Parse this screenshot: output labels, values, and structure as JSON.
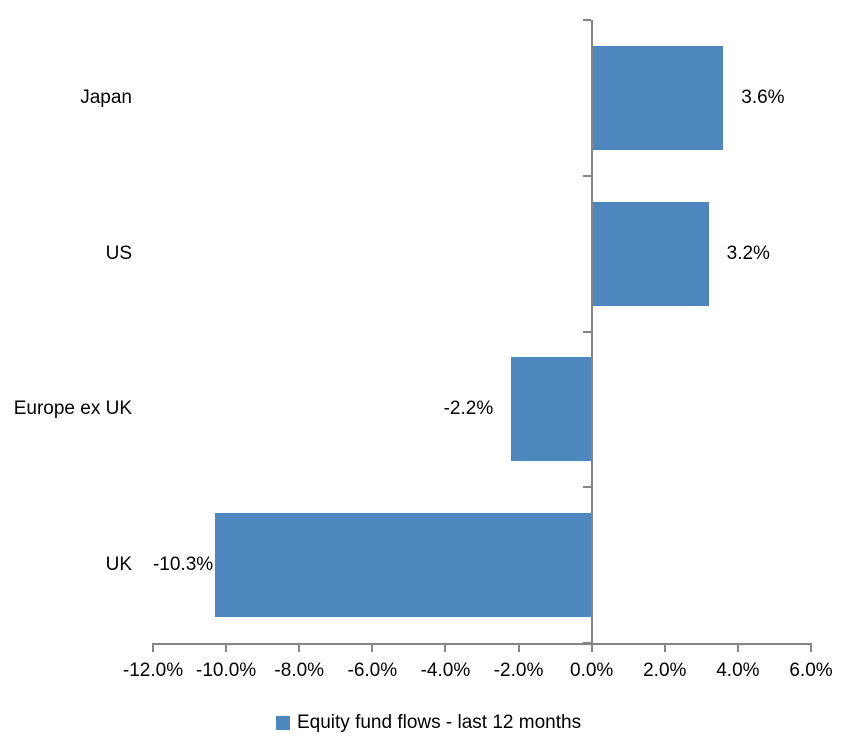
{
  "chart_data": {
    "type": "bar",
    "orientation": "horizontal",
    "title": "",
    "categories": [
      "Japan",
      "US",
      "Europe ex UK",
      "UK"
    ],
    "values": [
      3.6,
      3.2,
      -2.2,
      -10.3
    ],
    "data_labels": [
      "3.6%",
      "3.2%",
      "-2.2%",
      "-10.3%"
    ],
    "xlim": [
      -12,
      6
    ],
    "xtick_step": 2,
    "xtick_labels": [
      "-12.0%",
      "-10.0%",
      "-8.0%",
      "-6.0%",
      "-4.0%",
      "-2.0%",
      "0.0%",
      "2.0%",
      "4.0%",
      "6.0%"
    ],
    "legend_label": "Equity fund flows - last 12 months",
    "legend_position": "bottom-center",
    "grid": false,
    "bar_color": "#4E87BE",
    "axis_color": "#868686",
    "text_color": "#000000",
    "label_gaps": [
      18,
      18,
      18,
      2
    ]
  }
}
